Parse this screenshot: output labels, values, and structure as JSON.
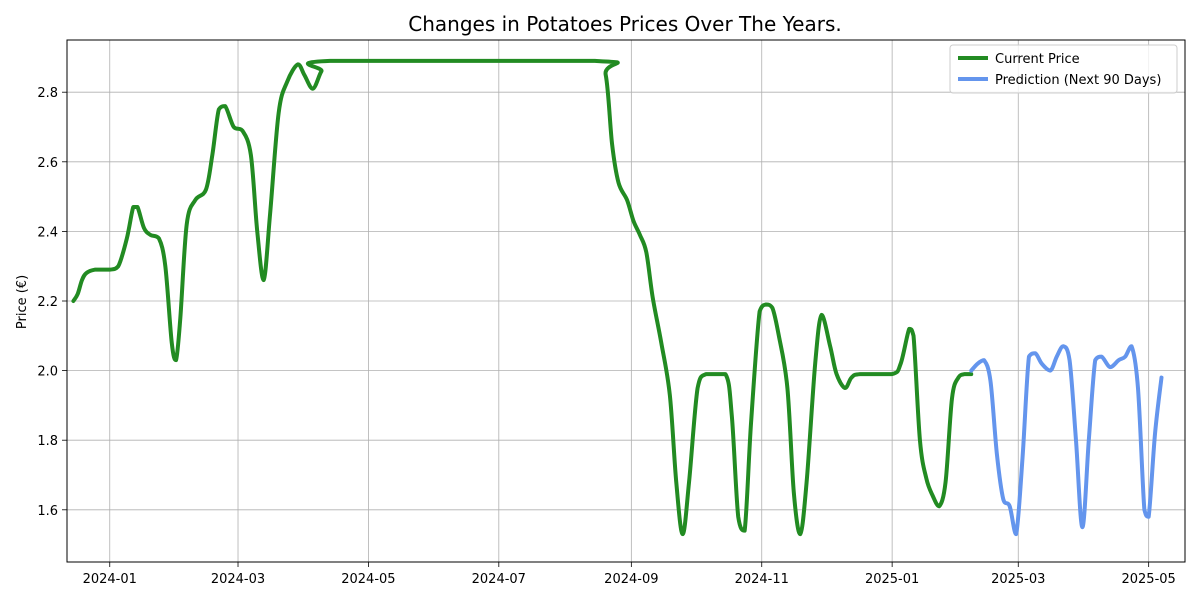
{
  "chart_data": {
    "type": "line",
    "title": "Changes in Potatoes Prices Over The Years.",
    "xlabel": "",
    "ylabel": "Price (€)",
    "x_ticks": [
      "2024-01",
      "2024-03",
      "2024-05",
      "2024-07",
      "2024-09",
      "2024-11",
      "2025-01",
      "2025-03",
      "2025-05"
    ],
    "y_ticks": [
      "1.6",
      "1.8",
      "2.0",
      "2.2",
      "2.4",
      "2.6",
      "2.8"
    ],
    "xlim": [
      "2023-12-12",
      "2025-05-18"
    ],
    "ylim": [
      1.45,
      2.95
    ],
    "grid": true,
    "legend_position": "top-right",
    "series": [
      {
        "name": "Current Price",
        "color": "#228b22",
        "points": [
          [
            "2023-12-15",
            2.2
          ],
          [
            "2023-12-17",
            2.22
          ],
          [
            "2023-12-19",
            2.26
          ],
          [
            "2023-12-21",
            2.28
          ],
          [
            "2023-12-25",
            2.29
          ],
          [
            "2024-01-01",
            2.29
          ],
          [
            "2024-01-05",
            2.3
          ],
          [
            "2024-01-09",
            2.38
          ],
          [
            "2024-01-12",
            2.47
          ],
          [
            "2024-01-14",
            2.47
          ],
          [
            "2024-01-17",
            2.41
          ],
          [
            "2024-01-20",
            2.39
          ],
          [
            "2024-01-24",
            2.38
          ],
          [
            "2024-01-27",
            2.3
          ],
          [
            "2024-01-30",
            2.08
          ],
          [
            "2024-02-01",
            2.03
          ],
          [
            "2024-02-03",
            2.15
          ],
          [
            "2024-02-06",
            2.42
          ],
          [
            "2024-02-10",
            2.49
          ],
          [
            "2024-02-15",
            2.52
          ],
          [
            "2024-02-18",
            2.62
          ],
          [
            "2024-02-21",
            2.75
          ],
          [
            "2024-02-24",
            2.76
          ],
          [
            "2024-02-28",
            2.7
          ],
          [
            "2024-03-03",
            2.69
          ],
          [
            "2024-03-07",
            2.62
          ],
          [
            "2024-03-10",
            2.4
          ],
          [
            "2024-03-13",
            2.26
          ],
          [
            "2024-03-16",
            2.45
          ],
          [
            "2024-03-20",
            2.74
          ],
          [
            "2024-03-24",
            2.83
          ],
          [
            "2024-03-29",
            2.88
          ],
          [
            "2024-04-01",
            2.85
          ],
          [
            "2024-04-05",
            2.81
          ],
          [
            "2024-04-09",
            2.86
          ],
          [
            "2024-04-13",
            2.89
          ],
          [
            "2024-08-15",
            2.89
          ],
          [
            "2024-08-20",
            2.85
          ],
          [
            "2024-08-23",
            2.65
          ],
          [
            "2024-08-26",
            2.54
          ],
          [
            "2024-08-30",
            2.49
          ],
          [
            "2024-09-02",
            2.43
          ],
          [
            "2024-09-05",
            2.39
          ],
          [
            "2024-09-08",
            2.34
          ],
          [
            "2024-09-11",
            2.21
          ],
          [
            "2024-09-15",
            2.08
          ],
          [
            "2024-09-19",
            1.93
          ],
          [
            "2024-09-22",
            1.68
          ],
          [
            "2024-09-25",
            1.53
          ],
          [
            "2024-09-28",
            1.68
          ],
          [
            "2024-10-02",
            1.95
          ],
          [
            "2024-10-06",
            1.99
          ],
          [
            "2024-10-15",
            1.99
          ],
          [
            "2024-10-18",
            1.87
          ],
          [
            "2024-10-21",
            1.58
          ],
          [
            "2024-10-24",
            1.54
          ],
          [
            "2024-10-27",
            1.85
          ],
          [
            "2024-10-31",
            2.17
          ],
          [
            "2024-11-03",
            2.19
          ],
          [
            "2024-11-06",
            2.18
          ],
          [
            "2024-11-09",
            2.1
          ],
          [
            "2024-11-13",
            1.95
          ],
          [
            "2024-11-16",
            1.65
          ],
          [
            "2024-11-19",
            1.53
          ],
          [
            "2024-11-22",
            1.68
          ],
          [
            "2024-11-26",
            2.02
          ],
          [
            "2024-11-29",
            2.16
          ],
          [
            "2024-12-03",
            2.07
          ],
          [
            "2024-12-06",
            1.99
          ],
          [
            "2024-12-10",
            1.95
          ],
          [
            "2024-12-13",
            1.98
          ],
          [
            "2024-12-17",
            1.99
          ],
          [
            "2025-01-01",
            1.99
          ],
          [
            "2025-01-05",
            2.02
          ],
          [
            "2025-01-09",
            2.12
          ],
          [
            "2025-01-11",
            2.1
          ],
          [
            "2025-01-14",
            1.8
          ],
          [
            "2025-01-17",
            1.69
          ],
          [
            "2025-01-20",
            1.64
          ],
          [
            "2025-01-23",
            1.61
          ],
          [
            "2025-01-26",
            1.68
          ],
          [
            "2025-01-29",
            1.92
          ],
          [
            "2025-02-01",
            1.98
          ],
          [
            "2025-02-04",
            1.99
          ],
          [
            "2025-02-07",
            1.99
          ]
        ]
      },
      {
        "name": "Prediction (Next 90 Days)",
        "color": "#6495ed",
        "points": [
          [
            "2025-02-07",
            2.0
          ],
          [
            "2025-02-10",
            2.02
          ],
          [
            "2025-02-13",
            2.03
          ],
          [
            "2025-02-16",
            1.97
          ],
          [
            "2025-02-19",
            1.76
          ],
          [
            "2025-02-22",
            1.63
          ],
          [
            "2025-02-25",
            1.61
          ],
          [
            "2025-02-28",
            1.53
          ],
          [
            "2025-03-03",
            1.75
          ],
          [
            "2025-03-06",
            2.04
          ],
          [
            "2025-03-09",
            2.05
          ],
          [
            "2025-03-12",
            2.02
          ],
          [
            "2025-03-16",
            2.0
          ],
          [
            "2025-03-19",
            2.04
          ],
          [
            "2025-03-22",
            2.07
          ],
          [
            "2025-03-25",
            2.03
          ],
          [
            "2025-03-28",
            1.8
          ],
          [
            "2025-03-31",
            1.55
          ],
          [
            "2025-04-03",
            1.8
          ],
          [
            "2025-04-06",
            2.03
          ],
          [
            "2025-04-09",
            2.04
          ],
          [
            "2025-04-13",
            2.01
          ],
          [
            "2025-04-17",
            2.03
          ],
          [
            "2025-04-20",
            2.04
          ],
          [
            "2025-04-23",
            2.07
          ],
          [
            "2025-04-26",
            1.95
          ],
          [
            "2025-04-29",
            1.6
          ],
          [
            "2025-05-01",
            1.58
          ],
          [
            "2025-05-04",
            1.82
          ],
          [
            "2025-05-07",
            1.98
          ]
        ]
      }
    ]
  }
}
